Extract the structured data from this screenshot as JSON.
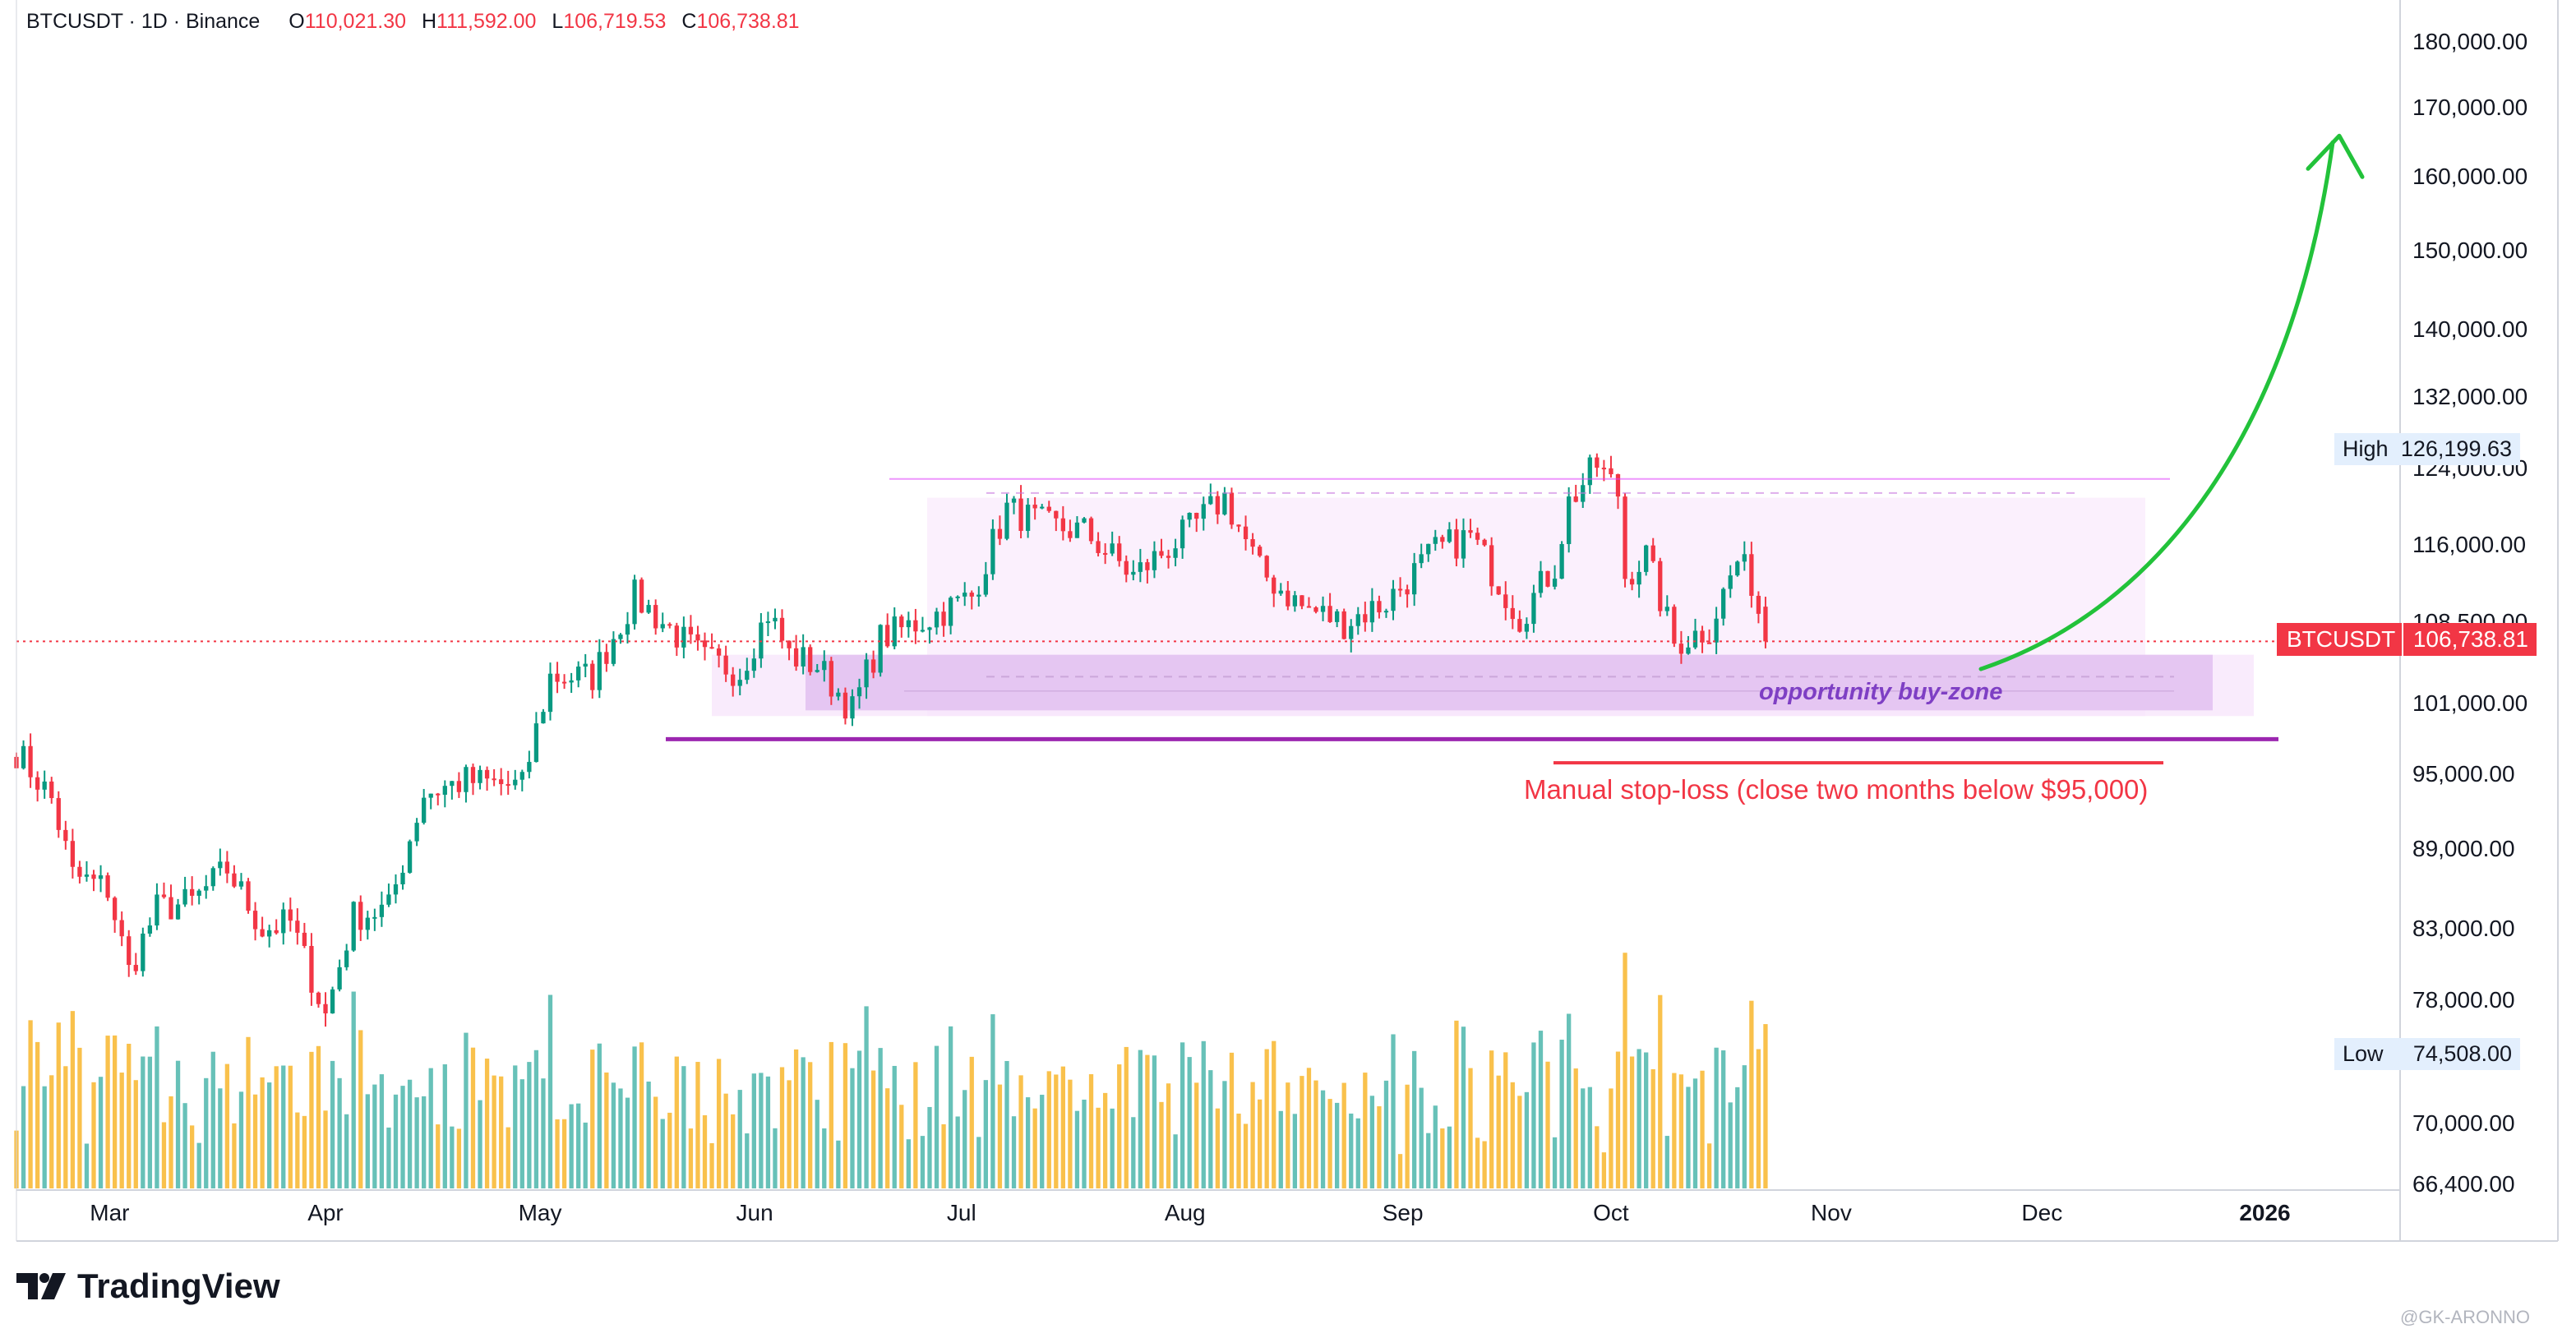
{
  "header": {
    "symbol": "BTCUSDT · 1D · Binance",
    "open_label": "O",
    "open": "110,021.30",
    "high_label": "H",
    "high": "111,592.00",
    "low_label": "L",
    "low": "106,719.53",
    "close_label": "C",
    "close": "106,738.81"
  },
  "colors": {
    "up": "#089981",
    "down": "#f23645",
    "vol_up": "#26a69a",
    "vol_down": "#f7a600",
    "range_line": "#e040fb",
    "support_line": "#9c27b0",
    "stop_line": "#f23645",
    "arrow": "#22c23a",
    "zone_outer": "#f7e3fb",
    "zone_inner": "#e2bff0"
  },
  "chart_data": {
    "type": "candlestick",
    "symbol": "BTCUSDT",
    "timeframe": "1D",
    "exchange": "Binance",
    "y_axis": {
      "scale": "log",
      "ticks": [
        "180,000.00",
        "170,000.00",
        "160,000.00",
        "150,000.00",
        "140,000.00",
        "132,000.00",
        "124,000.00",
        "116,000.00",
        "108,500.00",
        "101,000.00",
        "95,000.00",
        "89,000.00",
        "83,000.00",
        "78,000.00",
        "70,000.00",
        "66,400.00"
      ],
      "tick_values": [
        180000,
        170000,
        160000,
        150000,
        140000,
        132000,
        124000,
        116000,
        108500,
        101000,
        95000,
        89000,
        83000,
        78000,
        70000,
        66400
      ],
      "range": [
        66000,
        185000
      ]
    },
    "x_axis": {
      "ticks": [
        "Mar",
        "Apr",
        "May",
        "Jun",
        "Jul",
        "Aug",
        "Sep",
        "Oct",
        "Nov",
        "Dec",
        "2026"
      ],
      "tick_dates": [
        "2025-03-01",
        "2025-04-01",
        "2025-05-01",
        "2025-06-01",
        "2025-07-01",
        "2025-08-01",
        "2025-09-01",
        "2025-10-01",
        "2025-11-01",
        "2025-12-01",
        "2026-01-01"
      ],
      "range": [
        "2025-02-23",
        "2026-01-26"
      ]
    },
    "candle_anchors": [
      {
        "date": "2025-02-23",
        "close": 97000
      },
      {
        "date": "2025-02-28",
        "close": 93000
      },
      {
        "date": "2025-03-03",
        "close": 87000
      },
      {
        "date": "2025-03-08",
        "close": 86000
      },
      {
        "date": "2025-03-11",
        "close": 80000
      },
      {
        "date": "2025-03-15",
        "close": 84500
      },
      {
        "date": "2025-03-20",
        "close": 85000
      },
      {
        "date": "2025-03-25",
        "close": 87500
      },
      {
        "date": "2025-03-30",
        "close": 83000
      },
      {
        "date": "2025-04-03",
        "close": 83500
      },
      {
        "date": "2025-04-08",
        "close": 77000
      },
      {
        "date": "2025-04-12",
        "close": 84000
      },
      {
        "date": "2025-04-17",
        "close": 84500
      },
      {
        "date": "2025-04-22",
        "close": 93500
      },
      {
        "date": "2025-04-28",
        "close": 94500
      },
      {
        "date": "2025-05-06",
        "close": 94000
      },
      {
        "date": "2025-05-10",
        "close": 103500
      },
      {
        "date": "2025-05-16",
        "close": 103500
      },
      {
        "date": "2025-05-22",
        "close": 111000
      },
      {
        "date": "2025-05-26",
        "close": 108500
      },
      {
        "date": "2025-06-01",
        "close": 105000
      },
      {
        "date": "2025-06-06",
        "close": 104000
      },
      {
        "date": "2025-06-10",
        "close": 109500
      },
      {
        "date": "2025-06-13",
        "close": 105500
      },
      {
        "date": "2025-06-17",
        "close": 104500
      },
      {
        "date": "2025-06-22",
        "close": 100500
      },
      {
        "date": "2025-06-26",
        "close": 107000
      },
      {
        "date": "2025-07-03",
        "close": 109000
      },
      {
        "date": "2025-07-09",
        "close": 111000
      },
      {
        "date": "2025-07-14",
        "close": 119800
      },
      {
        "date": "2025-07-20",
        "close": 118000
      },
      {
        "date": "2025-07-25",
        "close": 117500
      },
      {
        "date": "2025-08-01",
        "close": 113000
      },
      {
        "date": "2025-08-08",
        "close": 117000
      },
      {
        "date": "2025-08-14",
        "close": 121000
      },
      {
        "date": "2025-08-19",
        "close": 113500
      },
      {
        "date": "2025-08-25",
        "close": 110000
      },
      {
        "date": "2025-08-31",
        "close": 108500
      },
      {
        "date": "2025-09-06",
        "close": 110500
      },
      {
        "date": "2025-09-13",
        "close": 115500
      },
      {
        "date": "2025-09-18",
        "close": 117000
      },
      {
        "date": "2025-09-25",
        "close": 109000
      },
      {
        "date": "2025-09-30",
        "close": 114000
      },
      {
        "date": "2025-10-02",
        "close": 120500
      },
      {
        "date": "2025-10-06",
        "close": 124500
      },
      {
        "date": "2025-10-09",
        "close": 121500
      },
      {
        "date": "2025-10-10",
        "close": 113000
      },
      {
        "date": "2025-10-13",
        "close": 115000
      },
      {
        "date": "2025-10-17",
        "close": 106500
      },
      {
        "date": "2025-10-22",
        "close": 108000
      },
      {
        "date": "2025-10-26",
        "close": 114500
      },
      {
        "date": "2025-10-28",
        "close": 112500
      },
      {
        "date": "2025-10-30",
        "close": 106738.81
      }
    ],
    "high": "126,199.63",
    "low": "74,508.00",
    "last_price": "106,738.81",
    "markers": {
      "high_label": "High",
      "low_label": "Low",
      "price_label": "BTCUSDT"
    },
    "volume_series": true,
    "annotations": {
      "range_top": 123000,
      "range_top_dashed": 121500,
      "support_line": 98000,
      "stop_loss_line": 96000,
      "buy_zone": [
        100500,
        105500
      ],
      "outer_zone": [
        100000,
        121000
      ],
      "buy_zone_label": "opportunity buy-zone",
      "stop_loss_label": "Manual stop-loss (close two months below $95,000)",
      "arrow_target": 165000
    }
  },
  "branding": {
    "logo_text": "TradingView",
    "watermark": "@GK-ARONNO"
  }
}
